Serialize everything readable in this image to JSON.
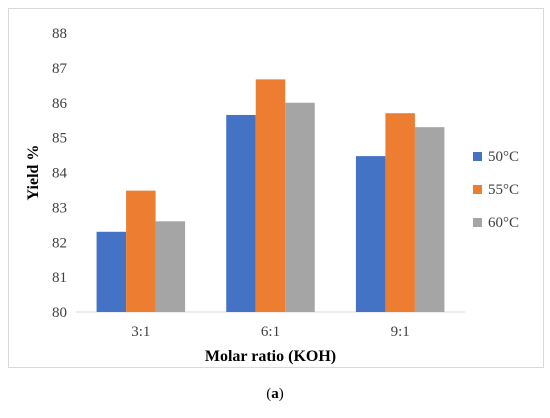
{
  "caption": {
    "open": "(",
    "letter": "a",
    "close": ")"
  },
  "chart_data": {
    "type": "bar",
    "title": "",
    "xlabel": "Molar ratio (KOH)",
    "ylabel": "Yield %",
    "categories": [
      "3:1",
      "6:1",
      "9:1"
    ],
    "ylim": [
      80,
      88
    ],
    "yticks": [
      80,
      81,
      82,
      83,
      84,
      85,
      86,
      87,
      88
    ],
    "grid": false,
    "legend_position": "right",
    "series": [
      {
        "name": "50°C",
        "color": "#4472c4",
        "values": [
          82.3,
          85.65,
          84.47
        ]
      },
      {
        "name": "55°C",
        "color": "#ed7d31",
        "values": [
          83.48,
          86.67,
          85.7
        ]
      },
      {
        "name": "60°C",
        "color": "#a5a5a5",
        "values": [
          82.6,
          86.0,
          85.3
        ]
      }
    ]
  }
}
